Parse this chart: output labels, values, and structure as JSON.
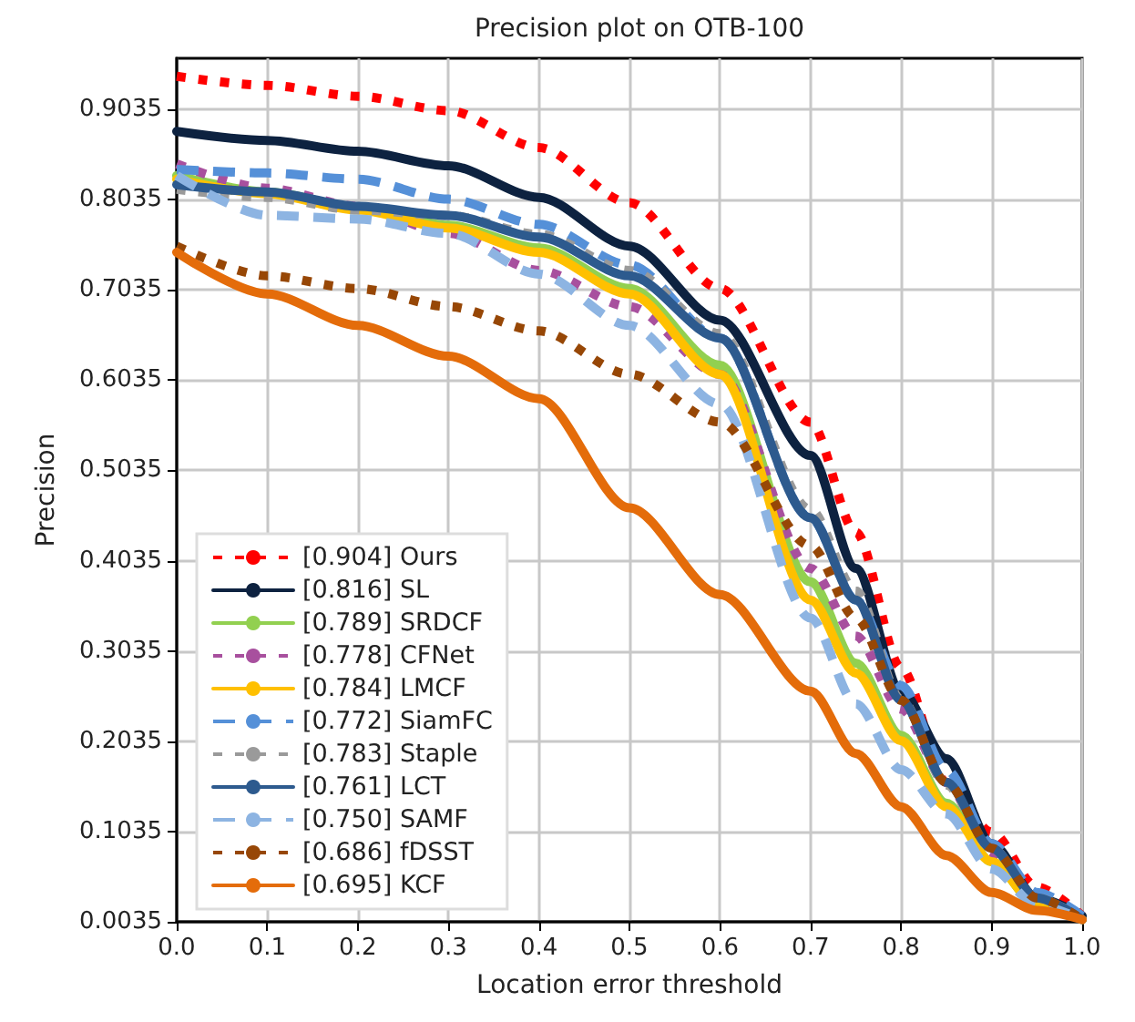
{
  "chart_data": {
    "type": "line",
    "title": "Precision plot on OTB-100",
    "xlabel": "Location error threshold",
    "ylabel": "Precision",
    "x": [
      0,
      0.1,
      0.2,
      0.3,
      0.4,
      0.5,
      0.6,
      0.7,
      0.75,
      0.8,
      0.85,
      0.9,
      0.95,
      1.0
    ],
    "series": [
      {
        "name": "[0.904] Ours",
        "color": "#ff0000",
        "line_style": "dotted",
        "values": [
          0.94,
          0.93,
          0.918,
          0.902,
          0.861,
          0.8,
          0.705,
          0.557,
          0.435,
          0.285,
          0.158,
          0.103,
          0.042,
          0.01
        ]
      },
      {
        "name": "[0.816] SL",
        "color": "#0d2240",
        "line_style": "solid",
        "values": [
          0.879,
          0.869,
          0.857,
          0.841,
          0.806,
          0.752,
          0.67,
          0.52,
          0.395,
          0.259,
          0.184,
          0.09,
          0.03,
          0.01
        ]
      },
      {
        "name": "[0.789] SRDCF",
        "color": "#92d050",
        "line_style": "solid",
        "values": [
          0.83,
          0.812,
          0.795,
          0.775,
          0.75,
          0.705,
          0.62,
          0.38,
          0.29,
          0.21,
          0.135,
          0.07,
          0.022,
          0.006
        ]
      },
      {
        "name": "[0.778] CFNet",
        "color": "#a8509e",
        "line_style": "dotted",
        "values": [
          0.843,
          0.816,
          0.796,
          0.766,
          0.725,
          0.685,
          0.61,
          0.395,
          0.32,
          0.239,
          0.158,
          0.077,
          0.03,
          0.006
        ]
      },
      {
        "name": "[0.784] LMCF",
        "color": "#ffc000",
        "line_style": "solid",
        "values": [
          0.826,
          0.81,
          0.792,
          0.772,
          0.745,
          0.699,
          0.61,
          0.36,
          0.279,
          0.204,
          0.131,
          0.07,
          0.022,
          0.006
        ]
      },
      {
        "name": "[0.772] SiamFC",
        "color": "#5590d8",
        "line_style": "dashed",
        "values": [
          0.837,
          0.833,
          0.826,
          0.804,
          0.776,
          0.731,
          0.65,
          0.451,
          0.36,
          0.265,
          0.172,
          0.09,
          0.036,
          0.01
        ]
      },
      {
        "name": "[0.783] Staple",
        "color": "#9a9a9a",
        "line_style": "dotted",
        "values": [
          0.815,
          0.806,
          0.792,
          0.786,
          0.765,
          0.725,
          0.655,
          0.46,
          0.37,
          0.25,
          0.155,
          0.085,
          0.03,
          0.006
        ]
      },
      {
        "name": "[0.761] LCT",
        "color": "#2d5a8e",
        "line_style": "solid",
        "values": [
          0.82,
          0.812,
          0.796,
          0.786,
          0.762,
          0.719,
          0.65,
          0.451,
          0.36,
          0.249,
          0.158,
          0.085,
          0.03,
          0.006
        ]
      },
      {
        "name": "[0.750] SAMF",
        "color": "#8db4e2",
        "line_style": "dashed",
        "values": [
          0.83,
          0.786,
          0.782,
          0.766,
          0.721,
          0.664,
          0.577,
          0.34,
          0.245,
          0.172,
          0.123,
          0.062,
          0.022,
          0.006
        ]
      },
      {
        "name": "[0.686] fDSST",
        "color": "#974706",
        "line_style": "dotted",
        "values": [
          0.752,
          0.719,
          0.705,
          0.685,
          0.658,
          0.61,
          0.557,
          0.42,
          0.34,
          0.249,
          0.158,
          0.085,
          0.03,
          0.006
        ]
      },
      {
        "name": "[0.695] KCF",
        "color": "#e46c0a",
        "line_style": "solid",
        "values": [
          0.745,
          0.699,
          0.664,
          0.63,
          0.583,
          0.462,
          0.366,
          0.259,
          0.19,
          0.131,
          0.077,
          0.036,
          0.016,
          0.006
        ]
      }
    ],
    "xlim": [
      0,
      1.0
    ],
    "xticks": [
      {
        "value": 0,
        "label": "0.0"
      },
      {
        "value": 0.1,
        "label": "0.1"
      },
      {
        "value": 0.2,
        "label": "0.2"
      },
      {
        "value": 0.3,
        "label": "0.3"
      },
      {
        "value": 0.4,
        "label": "0.4"
      },
      {
        "value": 0.5,
        "label": "0.5"
      },
      {
        "value": 0.6,
        "label": "0.6"
      },
      {
        "value": 0.7,
        "label": "0.7"
      },
      {
        "value": 0.8,
        "label": "0.8"
      },
      {
        "value": 0.9,
        "label": "0.9"
      },
      {
        "value": 1.0,
        "label": "1.0"
      }
    ],
    "ylim": [
      0.0035,
      0.96
    ],
    "yticks": [
      0.0035,
      0.1035,
      0.2035,
      0.3035,
      0.4035,
      0.5035,
      0.6035,
      0.7035,
      0.8035,
      0.9035
    ],
    "grid": true,
    "legend": "bottom left",
    "marker": "none"
  }
}
